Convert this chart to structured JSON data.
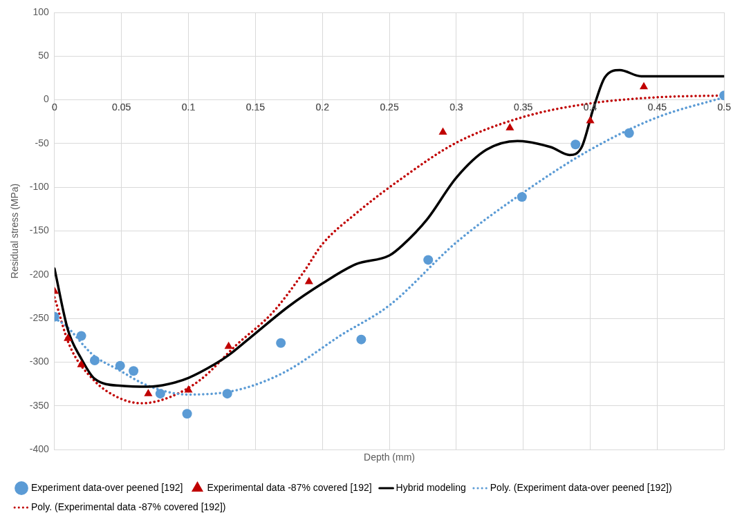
{
  "chart_data": {
    "type": "scatter",
    "xlabel": "Depth (mm)",
    "ylabel": "Residual stress (MPa)",
    "xlim": [
      0,
      0.5
    ],
    "xticks": [
      0,
      0.05,
      0.1,
      0.15,
      0.2,
      0.25,
      0.3,
      0.35,
      0.4,
      0.45,
      0.5
    ],
    "ylim": [
      -400,
      100
    ],
    "yticks": [
      -400,
      -350,
      -300,
      -250,
      -200,
      -150,
      -100,
      -50,
      0,
      50,
      100
    ],
    "grid": true,
    "legend": "bottom",
    "series": [
      {
        "name": "Experiment data-over peened [192]",
        "marker": "circle",
        "color": "#5b9bd5",
        "x": [
          0,
          0.02,
          0.03,
          0.049,
          0.059,
          0.079,
          0.099,
          0.129,
          0.169,
          0.229,
          0.279,
          0.349,
          0.389,
          0.429,
          0.5
        ],
        "values": [
          -248,
          -270,
          -298,
          -304,
          -310,
          -336,
          -359,
          -336,
          -278,
          -274,
          -183,
          -111,
          -51,
          -38,
          5
        ]
      },
      {
        "name": "Experimental data -87% covered [192]",
        "marker": "triangle",
        "color": "#c00000",
        "x": [
          0,
          0.01,
          0.02,
          0.07,
          0.1,
          0.13,
          0.19,
          0.29,
          0.34,
          0.4,
          0.44
        ],
        "values": [
          -219,
          -273,
          -303,
          -336,
          -332,
          -282,
          -208,
          -37,
          -32,
          -24,
          15
        ]
      },
      {
        "name": "Hybrid modeling",
        "type": "line",
        "marker": "none",
        "line_style": "solid",
        "color": "#000000",
        "x": [
          0,
          0.01,
          0.02,
          0.03,
          0.05,
          0.07,
          0.085,
          0.1,
          0.12,
          0.13,
          0.15,
          0.175,
          0.2,
          0.225,
          0.25,
          0.26,
          0.278,
          0.3,
          0.3225,
          0.3456,
          0.3705,
          0.3846,
          0.3936,
          0.4025,
          0.411,
          0.422,
          0.438,
          0.5
        ],
        "values": [
          -193,
          -263,
          -296,
          -319,
          -327,
          -328,
          -325,
          -318,
          -302,
          -292,
          -267,
          -236,
          -210,
          -188,
          -178,
          -166,
          -137,
          -89,
          -57,
          -47,
          -54,
          -63,
          -54,
          -9,
          26,
          34,
          27,
          27
        ]
      },
      {
        "name": "Poly. (Experiment data-over peened [192])",
        "type": "line",
        "marker": "none",
        "line_style": "dotted",
        "color": "#5b9bd5",
        "x": [
          0,
          0.0075,
          0.029,
          0.047,
          0.07,
          0.1,
          0.136,
          0.171,
          0.214,
          0.25,
          0.3,
          0.35,
          0.4,
          0.45,
          0.5
        ],
        "values": [
          -250,
          -257,
          -292,
          -308,
          -327,
          -337,
          -332,
          -312,
          -269,
          -235,
          -163,
          -106,
          -57,
          -20,
          3
        ]
      },
      {
        "name": "Poly. (Experimental data -87% covered [192])",
        "type": "line",
        "marker": "none",
        "line_style": "dotted",
        "color": "#c00000",
        "x": [
          0,
          0.011,
          0.029,
          0.047,
          0.065,
          0.086,
          0.109,
          0.136,
          0.163,
          0.186,
          0.2,
          0.225,
          0.26,
          0.3,
          0.349,
          0.4,
          0.45,
          0.5
        ],
        "values": [
          -226,
          -280,
          -320,
          -340,
          -347,
          -340,
          -320,
          -280,
          -243,
          -197,
          -165,
          -130,
          -89,
          -49,
          -20,
          -4,
          3,
          5
        ]
      }
    ]
  }
}
